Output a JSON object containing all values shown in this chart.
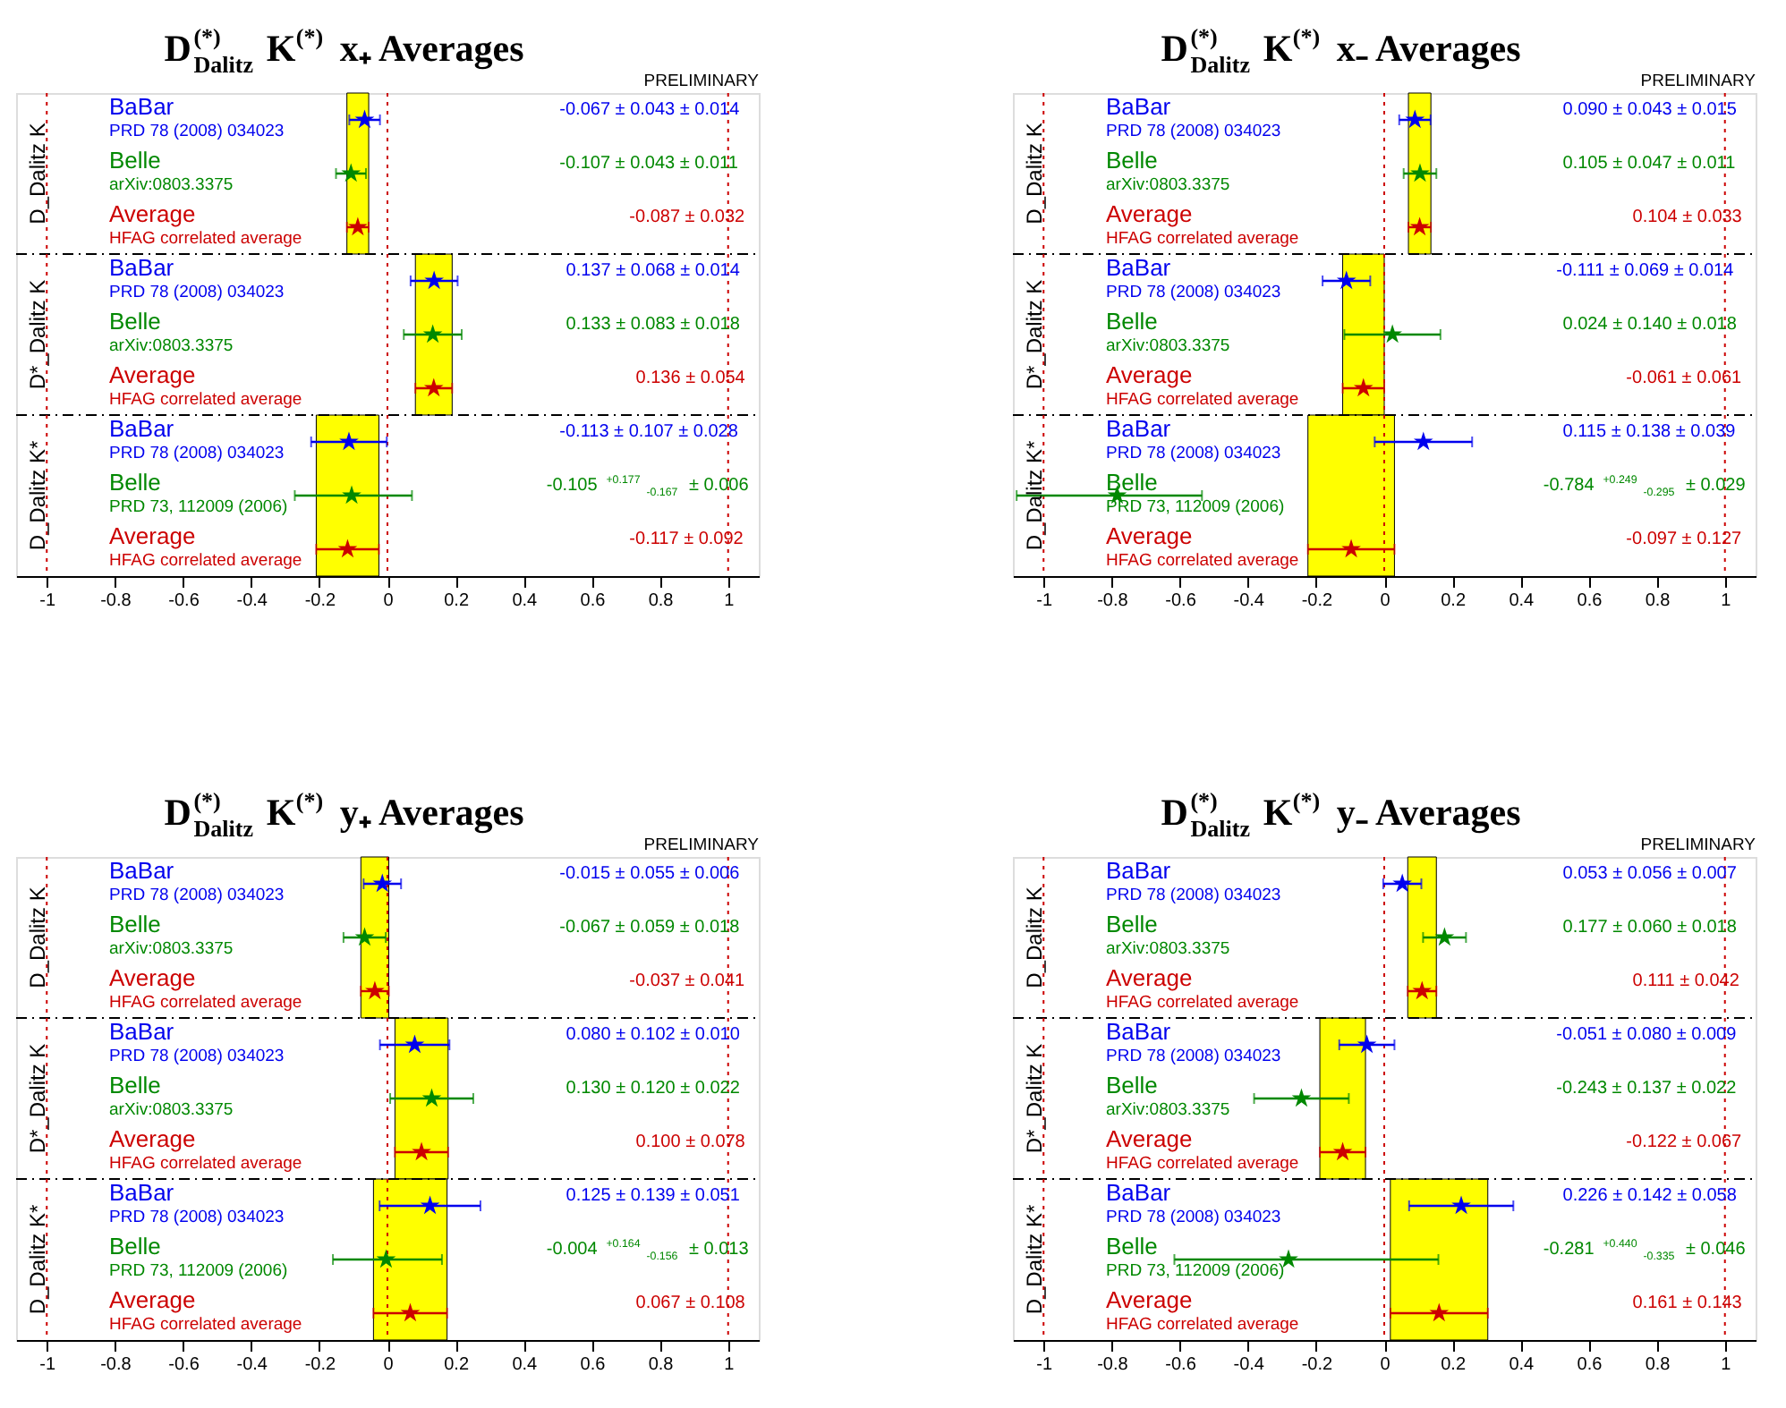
{
  "chart_data": [
    {
      "type": "scatter",
      "orientation": "horizontal",
      "marker": "star",
      "title": "D$_{Dalitz}$$^{(*)}$K$^{(*)}$ x₊ Averages",
      "categories": [
        null,
        null,
        null,
        null,
        null,
        null,
        null,
        null,
        null
      ],
      "series": [
        {
          "name": "BaBar",
          "color": "#0000ee",
          "values": [
            -0.067,
            null,
            null,
            0.137,
            null,
            null,
            -0.113,
            null,
            null
          ],
          "errors": [
            0.045,
            null,
            null,
            0.069,
            null,
            null,
            0.111,
            null,
            null
          ]
        },
        {
          "name": "Belle",
          "color": "#008800",
          "values": [
            null,
            -0.107,
            null,
            null,
            0.133,
            null,
            null,
            -0.105,
            null
          ],
          "errors": [
            null,
            0.044,
            null,
            null,
            0.085,
            null,
            null,
            [
              -0.272,
              0.072
            ],
            null
          ]
        },
        {
          "name": "Average",
          "color": "#cc0000",
          "values": [
            null,
            null,
            -0.087,
            null,
            null,
            0.136,
            null,
            null,
            -0.117
          ],
          "errors": [
            null,
            null,
            0.032,
            null,
            null,
            0.054,
            null,
            null,
            0.092
          ]
        }
      ],
      "bands": [
        {
          "axis": "x",
          "from": -0.119,
          "to": -0.055,
          "color": "#ffff00"
        },
        {
          "axis": "x",
          "from": 0.082,
          "to": 0.19,
          "color": "#ffff00"
        },
        {
          "axis": "x",
          "from": -0.209,
          "to": -0.025,
          "color": "#ffff00"
        }
      ],
      "ref_lines": [
        {
          "axis": "x",
          "value": -1,
          "color": "#cc0000",
          "line_style": "dotted"
        },
        {
          "axis": "x",
          "value": 0,
          "color": "#cc0000",
          "line_style": "dotted"
        },
        {
          "axis": "x",
          "value": 1,
          "color": "#cc0000",
          "line_style": "dotted"
        }
      ],
      "xlim": [
        -1.09,
        1.09
      ],
      "xticks": [
        -1,
        -0.8,
        -0.6,
        -0.4,
        -0.2,
        0,
        0.2,
        0.4,
        0.6,
        0.8,
        1
      ],
      "annotations": [
        "D_Dalitz K",
        "D*_Dalitz K",
        "D_Dalitz K*",
        "PRD 78 (2008) 034023",
        "arXiv:0803.3375",
        "HFAG correlated average",
        "PRD 78 (2008) 034023",
        "arXiv:0803.3375",
        "HFAG correlated average",
        "PRD 78 (2008) 034023",
        "PRD 73, 112009 (2006)",
        "HFAG correlated average",
        "-0.067 ± 0.043 ± 0.014",
        "-0.107 ± 0.043 ± 0.011",
        "-0.087 ± 0.032",
        "0.137 ± 0.068 ± 0.014",
        "0.133 ± 0.083 ± 0.018",
        "0.136 ± 0.054",
        "-0.113 ± 0.107 ± 0.028",
        "-0.105 $^{+0.177}$$_{-0.167}$ ± 0.006",
        "-0.117 ± 0.092",
        "PRELIMINARY"
      ]
    },
    {
      "type": "scatter",
      "orientation": "horizontal",
      "marker": "star",
      "title": "D$_{Dalitz}$$^{(*)}$K$^{(*)}$ x₋ Averages",
      "categories": [
        null,
        null,
        null,
        null,
        null,
        null,
        null,
        null,
        null
      ],
      "series": [
        {
          "name": "BaBar",
          "color": "#0000ee",
          "values": [
            0.09,
            null,
            null,
            -0.111,
            null,
            null,
            0.115,
            null,
            null
          ],
          "errors": [
            0.046,
            null,
            null,
            0.07,
            null,
            null,
            0.143,
            null,
            null
          ]
        },
        {
          "name": "Belle",
          "color": "#008800",
          "values": [
            null,
            0.105,
            null,
            null,
            0.024,
            null,
            null,
            -0.784,
            null
          ],
          "errors": [
            null,
            0.048,
            null,
            null,
            0.141,
            null,
            null,
            [
              -1.079,
              -0.535
            ],
            null
          ]
        },
        {
          "name": "Average",
          "color": "#cc0000",
          "values": [
            null,
            null,
            0.104,
            null,
            null,
            -0.061,
            null,
            null,
            -0.097
          ],
          "errors": [
            null,
            null,
            0.033,
            null,
            null,
            0.061,
            null,
            null,
            0.127
          ]
        }
      ],
      "bands": [
        {
          "axis": "x",
          "from": 0.071,
          "to": 0.137,
          "color": "#ffff00"
        },
        {
          "axis": "x",
          "from": -0.122,
          "to": 0.0,
          "color": "#ffff00"
        },
        {
          "axis": "x",
          "from": -0.224,
          "to": 0.03,
          "color": "#ffff00"
        }
      ],
      "ref_lines": [
        {
          "axis": "x",
          "value": -1,
          "color": "#cc0000",
          "line_style": "dotted"
        },
        {
          "axis": "x",
          "value": 0,
          "color": "#cc0000",
          "line_style": "dotted"
        },
        {
          "axis": "x",
          "value": 1,
          "color": "#cc0000",
          "line_style": "dotted"
        }
      ],
      "xlim": [
        -1.09,
        1.09
      ],
      "xticks": [
        -1,
        -0.8,
        -0.6,
        -0.4,
        -0.2,
        0,
        0.2,
        0.4,
        0.6,
        0.8,
        1
      ],
      "annotations": [
        "D_Dalitz K",
        "D*_Dalitz K",
        "D_Dalitz K*",
        "PRD 78 (2008) 034023",
        "arXiv:0803.3375",
        "HFAG correlated average",
        "PRD 78 (2008) 034023",
        "arXiv:0803.3375",
        "HFAG correlated average",
        "PRD 78 (2008) 034023",
        "PRD 73, 112009 (2006)",
        "HFAG correlated average",
        "0.090 ± 0.043 ± 0.015",
        "0.105 ± 0.047 ± 0.011",
        "0.104 ± 0.033",
        "-0.111 ± 0.069 ± 0.014",
        "0.024 ± 0.140 ± 0.018",
        "-0.061 ± 0.061",
        "0.115 ± 0.138 ± 0.039",
        "-0.784 $^{+0.249}$$_{-0.295}$ ± 0.029",
        "-0.097 ± 0.127",
        "PRELIMINARY"
      ]
    },
    {
      "type": "scatter",
      "orientation": "horizontal",
      "marker": "star",
      "title": "D$_{Dalitz}$$^{(*)}$K$^{(*)}$ y₊ Averages",
      "categories": [
        null,
        null,
        null,
        null,
        null,
        null,
        null,
        null,
        null
      ],
      "series": [
        {
          "name": "BaBar",
          "color": "#0000ee",
          "values": [
            -0.015,
            null,
            null,
            0.08,
            null,
            null,
            0.125,
            null,
            null
          ],
          "errors": [
            0.055,
            null,
            null,
            0.102,
            null,
            null,
            0.148,
            null,
            null
          ]
        },
        {
          "name": "Belle",
          "color": "#008800",
          "values": [
            null,
            -0.067,
            null,
            null,
            0.13,
            null,
            null,
            -0.004,
            null
          ],
          "errors": [
            null,
            0.062,
            null,
            null,
            0.122,
            null,
            null,
            [
              -0.16,
              0.16
            ],
            null
          ]
        },
        {
          "name": "Average",
          "color": "#cc0000",
          "values": [
            null,
            null,
            -0.037,
            null,
            null,
            0.1,
            null,
            null,
            0.067
          ],
          "errors": [
            null,
            null,
            0.041,
            null,
            null,
            0.078,
            null,
            null,
            0.108
          ]
        }
      ],
      "bands": [
        {
          "axis": "x",
          "from": -0.078,
          "to": 0.004,
          "color": "#ffff00"
        },
        {
          "axis": "x",
          "from": 0.022,
          "to": 0.178,
          "color": "#ffff00"
        },
        {
          "axis": "x",
          "from": -0.041,
          "to": 0.175,
          "color": "#ffff00"
        }
      ],
      "ref_lines": [
        {
          "axis": "x",
          "value": -1,
          "color": "#cc0000",
          "line_style": "dotted"
        },
        {
          "axis": "x",
          "value": 0,
          "color": "#cc0000",
          "line_style": "dotted"
        },
        {
          "axis": "x",
          "value": 1,
          "color": "#cc0000",
          "line_style": "dotted"
        }
      ],
      "xlim": [
        -1.09,
        1.09
      ],
      "xticks": [
        -1,
        -0.8,
        -0.6,
        -0.4,
        -0.2,
        0,
        0.2,
        0.4,
        0.6,
        0.8,
        1
      ],
      "annotations": [
        "D_Dalitz K",
        "D*_Dalitz K",
        "D_Dalitz K*",
        "PRD 78 (2008) 034023",
        "arXiv:0803.3375",
        "HFAG correlated average",
        "PRD 78 (2008) 034023",
        "arXiv:0803.3375",
        "HFAG correlated average",
        "PRD 78 (2008) 034023",
        "PRD 73, 112009 (2006)",
        "HFAG correlated average",
        "-0.015 ± 0.055 ± 0.006",
        "-0.067 ± 0.059 ± 0.018",
        "-0.037 ± 0.041",
        "0.080 ± 0.102 ± 0.010",
        "0.130 ± 0.120 ± 0.022",
        "0.100 ± 0.078",
        "0.125 ± 0.139 ± 0.051",
        "-0.004 $^{+0.164}$$_{-0.156}$ ± 0.013",
        "0.067 ± 0.108",
        "PRELIMINARY"
      ]
    },
    {
      "type": "scatter",
      "orientation": "horizontal",
      "marker": "star",
      "title": "D$_{Dalitz}$$^{(*)}$K$^{(*)}$ y₋ Averages",
      "categories": [
        null,
        null,
        null,
        null,
        null,
        null,
        null,
        null,
        null
      ],
      "series": [
        {
          "name": "BaBar",
          "color": "#0000ee",
          "values": [
            0.053,
            null,
            null,
            -0.051,
            null,
            null,
            0.226,
            null,
            null
          ],
          "errors": [
            0.056,
            null,
            null,
            0.081,
            null,
            null,
            0.153,
            null,
            null
          ]
        },
        {
          "name": "Belle",
          "color": "#008800",
          "values": [
            null,
            0.177,
            null,
            null,
            -0.243,
            null,
            null,
            -0.281,
            null
          ],
          "errors": [
            null,
            0.063,
            null,
            null,
            0.139,
            null,
            null,
            [
              -0.616,
              0.159
            ],
            null
          ]
        },
        {
          "name": "Average",
          "color": "#cc0000",
          "values": [
            null,
            null,
            0.111,
            null,
            null,
            -0.122,
            null,
            null,
            0.161
          ],
          "errors": [
            null,
            null,
            0.042,
            null,
            null,
            0.067,
            null,
            null,
            0.143
          ]
        }
      ],
      "bands": [
        {
          "axis": "x",
          "from": 0.069,
          "to": 0.153,
          "color": "#ffff00"
        },
        {
          "axis": "x",
          "from": -0.189,
          "to": -0.055,
          "color": "#ffff00"
        },
        {
          "axis": "x",
          "from": 0.018,
          "to": 0.304,
          "color": "#ffff00"
        }
      ],
      "ref_lines": [
        {
          "axis": "x",
          "value": -1,
          "color": "#cc0000",
          "line_style": "dotted"
        },
        {
          "axis": "x",
          "value": 0,
          "color": "#cc0000",
          "line_style": "dotted"
        },
        {
          "axis": "x",
          "value": 1,
          "color": "#cc0000",
          "line_style": "dotted"
        }
      ],
      "xlim": [
        -1.09,
        1.09
      ],
      "xticks": [
        -1,
        -0.8,
        -0.6,
        -0.4,
        -0.2,
        0,
        0.2,
        0.4,
        0.6,
        0.8,
        1
      ],
      "annotations": [
        "D_Dalitz K",
        "D*_Dalitz K",
        "D_Dalitz K*",
        "PRD 78 (2008) 034023",
        "arXiv:0803.3375",
        "HFAG correlated average",
        "PRD 78 (2008) 034023",
        "arXiv:0803.3375",
        "HFAG correlated average",
        "PRD 78 (2008) 034023",
        "PRD 73, 112009 (2006)",
        "HFAG correlated average",
        "0.053 ± 0.056 ± 0.007",
        "0.177 ± 0.060 ± 0.018",
        "0.111 ± 0.042",
        "-0.051 ± 0.080 ± 0.009",
        "-0.243 ± 0.137 ± 0.022",
        "-0.122 ± 0.067",
        "0.226 ± 0.142 ± 0.058",
        "-0.281 $^{+0.440}$$_{-0.335}$ ± 0.046",
        "0.161 ± 0.143",
        "PRELIMINARY"
      ]
    }
  ]
}
